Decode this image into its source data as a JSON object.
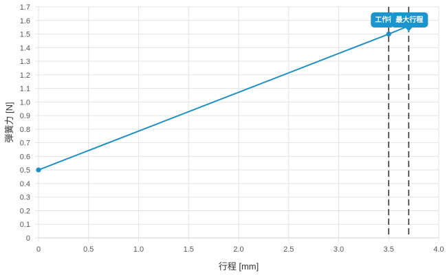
{
  "chart_data": {
    "type": "line",
    "xlabel": "行程 [mm]",
    "ylabel": "弾簧力 [N]",
    "xlim": [
      0,
      4.0
    ],
    "ylim": [
      0,
      1.7
    ],
    "x_ticks": [
      "0",
      "0.5",
      "1.0",
      "1.5",
      "2.0",
      "2.5",
      "3.0",
      "3.5",
      "4.0"
    ],
    "y_ticks": [
      "0",
      "0.1",
      "0.2",
      "0.3",
      "0.4",
      "0.5",
      "0.6",
      "0.7",
      "0.8",
      "0.9",
      "1.0",
      "1.1",
      "1.2",
      "1.3",
      "1.4",
      "1.5",
      "1.6",
      "1.7"
    ],
    "grid": true,
    "series": [
      {
        "color": "#1e90c8",
        "points": [
          {
            "x": 0,
            "y": 0.5
          },
          {
            "x": 3.5,
            "y": 1.5
          },
          {
            "x": 3.7,
            "y": 1.56
          }
        ]
      }
    ],
    "markers": [
      {
        "label": "工作行程",
        "x": 3.5,
        "y": 1.5
      },
      {
        "label": "最大行程",
        "x": 3.7,
        "y": 1.56
      }
    ],
    "colors": {
      "line": "#1e90c8",
      "callout": "#1a95cf",
      "marker_line": "#333333",
      "grid": "#e2e2e2"
    }
  }
}
